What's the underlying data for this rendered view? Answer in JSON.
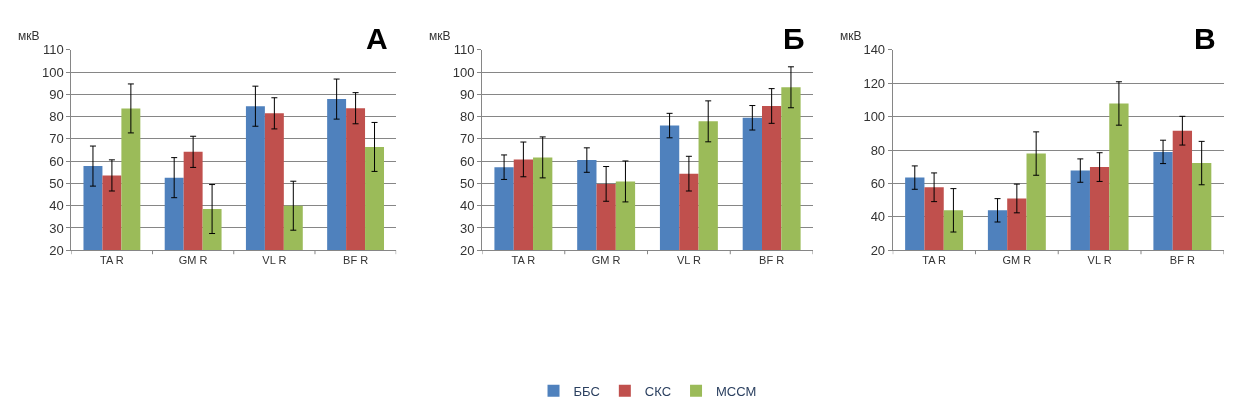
{
  "chart_data": [
    {
      "type": "bar",
      "title": "А",
      "ylabel": "мкВ",
      "categories": [
        "TA R",
        "GM R",
        "VL R",
        "BF R"
      ],
      "ylim": [
        20,
        110
      ],
      "yticks": [
        20,
        30,
        40,
        50,
        60,
        70,
        80,
        90,
        100,
        110
      ],
      "grid": "y",
      "legend": false,
      "series": [
        {
          "color": "#4f81bd",
          "values": [
            57.8,
            52.6,
            84.7,
            87.9
          ],
          "errors": [
            9,
            9,
            9,
            9
          ]
        },
        {
          "color": "#c0504d",
          "values": [
            53.6,
            64.2,
            81.5,
            83.8
          ],
          "errors": [
            7,
            7,
            7,
            7
          ]
        },
        {
          "color": "#9bbb59",
          "values": [
            83.7,
            38.5,
            40,
            66.4
          ],
          "errors": [
            11,
            11,
            11,
            11
          ]
        }
      ]
    },
    {
      "type": "bar",
      "title": "Б",
      "ylabel": "мкВ",
      "categories": [
        "TA R",
        "GM R",
        "VL R",
        "BF R"
      ],
      "ylim": [
        20,
        110
      ],
      "yticks": [
        20,
        30,
        40,
        50,
        60,
        70,
        80,
        90,
        100,
        110
      ],
      "grid": "y",
      "legend": "bottom",
      "series": [
        {
          "name": "ББС",
          "color": "#4f81bd",
          "values": [
            57.3,
            60.5,
            76,
            79.5
          ],
          "errors": [
            5.5,
            5.5,
            5.5,
            5.5
          ]
        },
        {
          "name": "СКС",
          "color": "#c0504d",
          "values": [
            60.8,
            49.8,
            54.4,
            84.8
          ],
          "errors": [
            7.8,
            7.8,
            7.8,
            7.8
          ]
        },
        {
          "name": "МССМ",
          "color": "#9bbb59",
          "values": [
            61.7,
            50.9,
            77.9,
            93.2
          ],
          "errors": [
            9.2,
            9.2,
            9.2,
            9.2
          ]
        }
      ]
    },
    {
      "type": "bar",
      "title": "В",
      "ylabel": "мкВ",
      "categories": [
        "TA R",
        "GM R",
        "VL R",
        "BF R"
      ],
      "ylim": [
        20,
        140
      ],
      "yticks": [
        20,
        40,
        60,
        80,
        100,
        120,
        140
      ],
      "grid": "y",
      "legend": false,
      "series": [
        {
          "color": "#4f81bd",
          "values": [
            63.5,
            43.9,
            67.7,
            78.9
          ],
          "errors": [
            7,
            7,
            7,
            7
          ]
        },
        {
          "color": "#c0504d",
          "values": [
            57.7,
            51,
            69.8,
            91.6
          ],
          "errors": [
            8.6,
            8.6,
            8.6,
            8.6
          ]
        },
        {
          "color": "#9bbb59",
          "values": [
            43.9,
            77.9,
            107.9,
            72.2
          ],
          "errors": [
            13,
            13,
            13,
            13
          ]
        }
      ]
    }
  ]
}
